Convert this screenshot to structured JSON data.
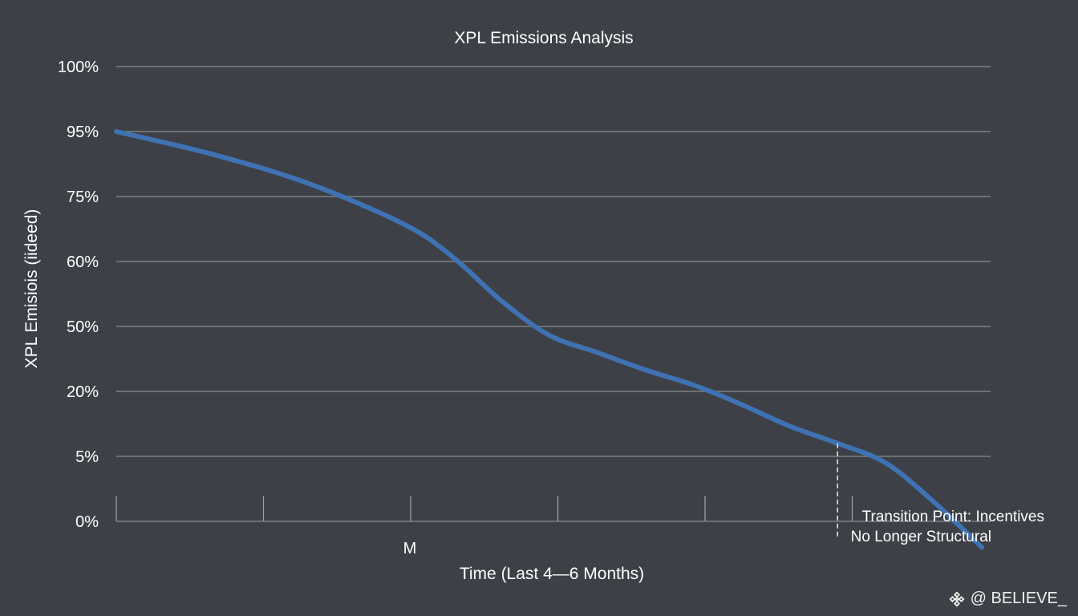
{
  "chart_data": {
    "type": "line",
    "title": "XPL Emissions Analysis",
    "xlabel": "Time (Last 4—6 Months)",
    "ylabel": "XPL Emisiois (iideed)",
    "y_tick_labels": [
      "100%",
      "95%",
      "75%",
      "60%",
      "50%",
      "20%",
      "5%",
      "0%"
    ],
    "x_tick_labels": [
      "",
      "",
      "M",
      "",
      "",
      ""
    ],
    "x_range": [
      0,
      6
    ],
    "grid": true,
    "series": [
      {
        "name": "XPL Emissions",
        "color": "#3f72b3",
        "x": [
          0,
          0.66,
          1.32,
          1.98,
          2.31,
          2.64,
          2.97,
          3.3,
          3.63,
          3.96,
          4.29,
          4.62,
          4.95,
          5.28,
          5.61,
          5.94
        ],
        "y": [
          95,
          88,
          79,
          68.5,
          61,
          54,
          46,
          38,
          30,
          23,
          17,
          12,
          8,
          4.5,
          1.5,
          -2
        ]
      }
    ],
    "annotations": [
      {
        "x": 4.95,
        "y": 8,
        "style": "dashed-vertical",
        "lines": [
          "Transition Point: Incentives",
          "No Longer Structural"
        ]
      }
    ]
  },
  "watermark": {
    "text": "@ BELIEVE_",
    "icon": "binance-diamond-icon"
  }
}
